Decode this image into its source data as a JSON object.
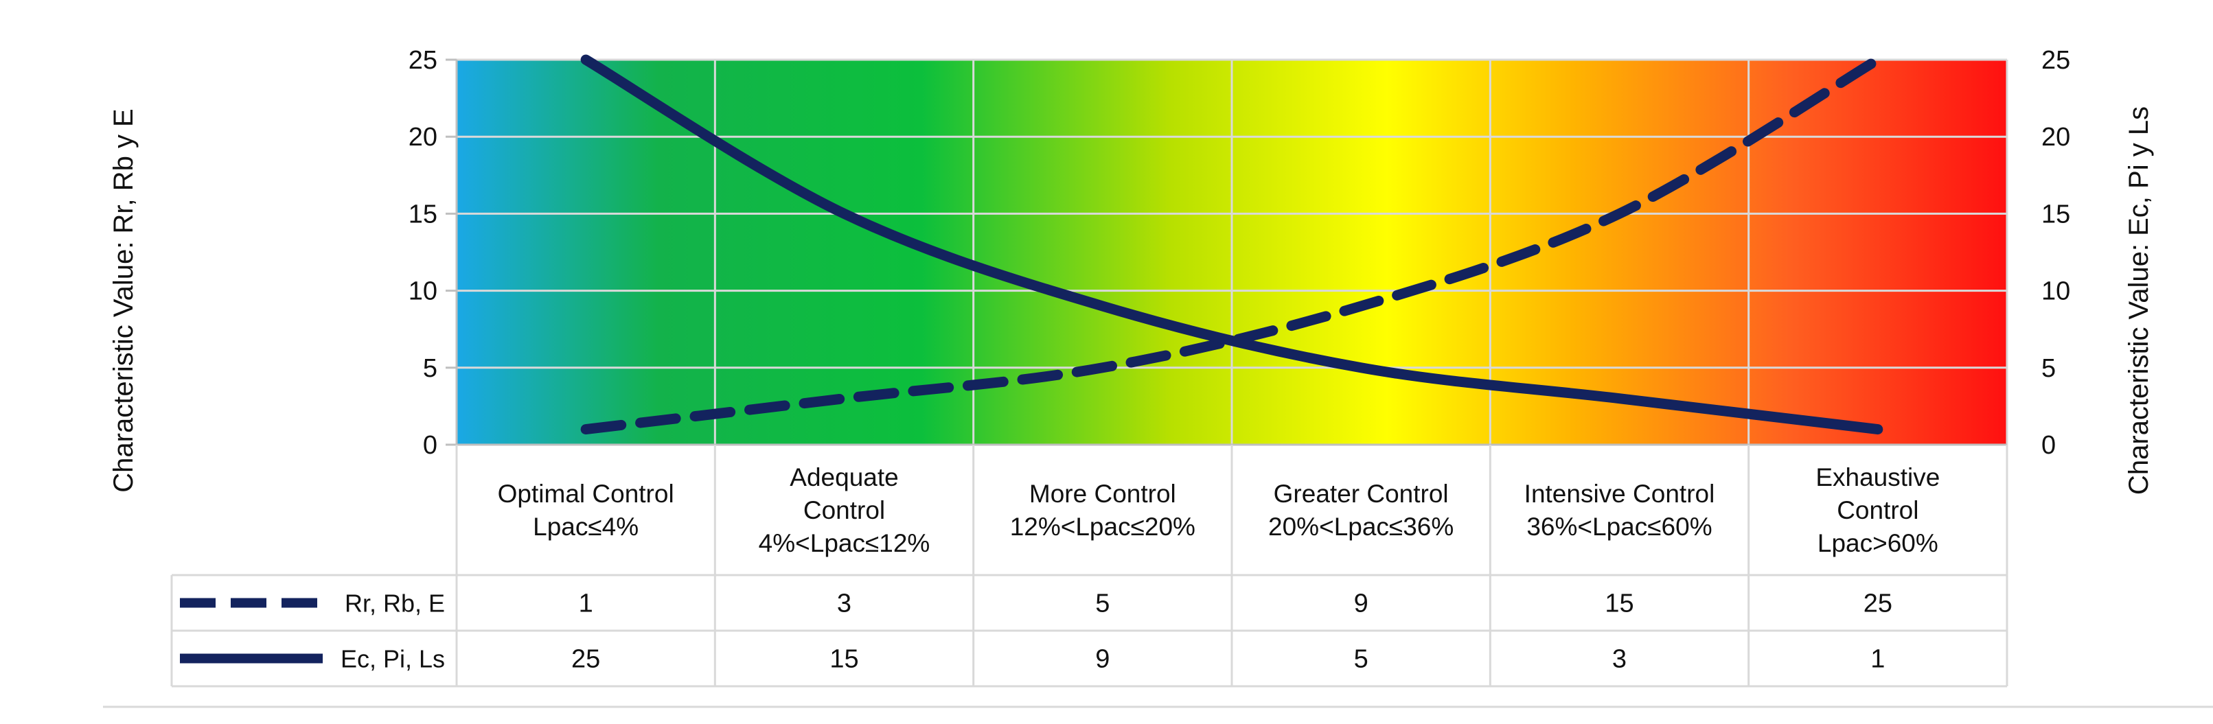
{
  "chart_data": {
    "type": "line",
    "title": "",
    "categories": [
      {
        "line1": "Optimal Control",
        "line2": "Lpac≤4%",
        "line3": ""
      },
      {
        "line1": "Adequate",
        "line2": "Control",
        "line3": "4%<Lpac≤12%"
      },
      {
        "line1": "More Control",
        "line2": "12%<Lpac≤20%",
        "line3": ""
      },
      {
        "line1": "Greater Control",
        "line2": "20%<Lpac≤36%",
        "line3": ""
      },
      {
        "line1": "Intensive Control",
        "line2": "36%<Lpac≤60%",
        "line3": ""
      },
      {
        "line1": "Exhaustive",
        "line2": "Control",
        "line3": "Lpac>60%"
      }
    ],
    "series": [
      {
        "name": "Rr, Rb, E",
        "values": [
          1,
          3,
          5,
          9,
          15,
          25
        ],
        "style": "dashed",
        "axis": "left",
        "color": "#13235e"
      },
      {
        "name": "Ec, Pi, Ls",
        "values": [
          25,
          15,
          9,
          5,
          3,
          1
        ],
        "style": "solid",
        "axis": "right",
        "color": "#13235e"
      }
    ],
    "ylabel": "Characteristic Value: Rr, Rb y E",
    "y2label": "Characteristic Value: Ec, Pi y Ls",
    "ylim": [
      0,
      25
    ],
    "y2lim": [
      0,
      25
    ],
    "yticks": [
      0,
      5,
      10,
      15,
      20,
      25
    ],
    "y2ticks": [
      0,
      5,
      10,
      15,
      20,
      25
    ],
    "grid": true,
    "legend": "data-table-left",
    "background": "gradient blue-green-yellow-red",
    "gradient_colors": [
      "#1aa8e6",
      "#13b24b",
      "#0cbf3c",
      "#b7e000",
      "#ffff00",
      "#ffb400",
      "#ff6020",
      "#ff1010"
    ]
  }
}
